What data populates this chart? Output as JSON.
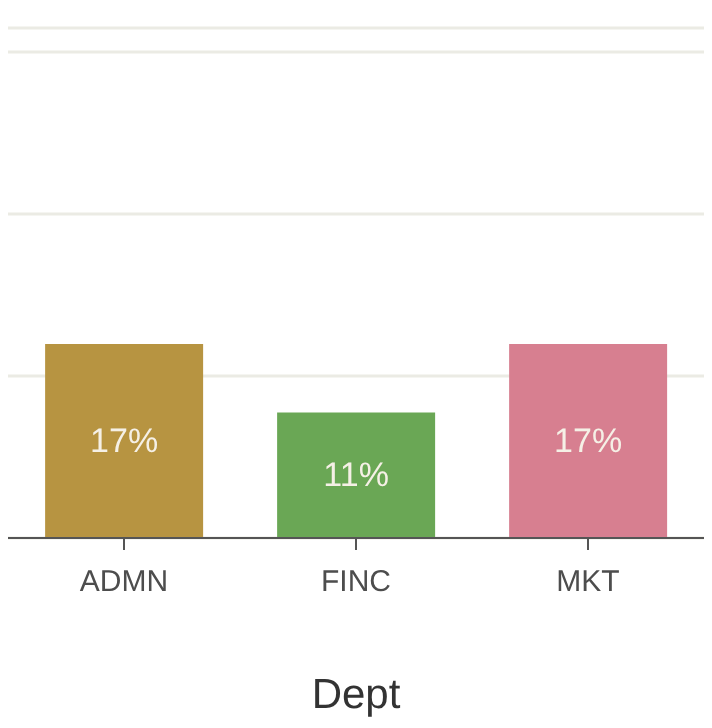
{
  "chart_data": {
    "type": "bar",
    "xlabel": "Dept",
    "categories": [
      "ADMN",
      "FINC",
      "MKT"
    ],
    "values": [
      17,
      11,
      17
    ],
    "colors": [
      "#b79441",
      "#6aa755",
      "#d77f90"
    ],
    "value_labels": [
      "17%",
      "11%",
      "17%"
    ],
    "ylim": [
      0,
      44.7
    ],
    "yticks": [
      {
        "value": 14.2,
        "label": null
      },
      {
        "value": 28.4,
        "label": null
      },
      {
        "value": 42.6,
        "label": null
      }
    ],
    "grid": "y",
    "tick_labels": "x"
  }
}
